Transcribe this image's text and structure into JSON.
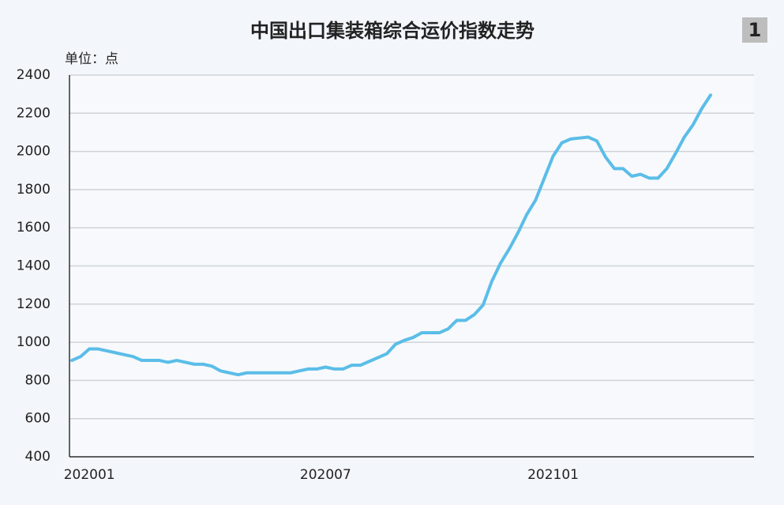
{
  "chart_data": {
    "type": "line",
    "title": "中国出口集装箱综合运价指数走势",
    "badge": "1",
    "unit_label": "单位：点",
    "categories": [
      null,
      null,
      "202001",
      null,
      null,
      null,
      null,
      null,
      null,
      null,
      null,
      null,
      null,
      null,
      null,
      null,
      null,
      null,
      null,
      null,
      null,
      null,
      null,
      null,
      null,
      null,
      null,
      null,
      null,
      "202007",
      null,
      null,
      null,
      null,
      null,
      null,
      null,
      null,
      null,
      null,
      null,
      null,
      null,
      null,
      null,
      null,
      null,
      null,
      null,
      null,
      null,
      null,
      null,
      null,
      null,
      "202101",
      null,
      null,
      null,
      null,
      null,
      null,
      null,
      null,
      null,
      null,
      null,
      null,
      null,
      null,
      null,
      null,
      null,
      null
    ],
    "series": [
      {
        "name": "中国出口集装箱综合运价指数",
        "color": "#5bbde8",
        "values": [
          905,
          925,
          965,
          965,
          955,
          945,
          935,
          925,
          905,
          905,
          905,
          895,
          905,
          895,
          885,
          885,
          875,
          850,
          840,
          830,
          840,
          840,
          840,
          840,
          840,
          840,
          850,
          860,
          860,
          870,
          860,
          860,
          880,
          880,
          900,
          920,
          940,
          990,
          1010,
          1025,
          1050,
          1050,
          1050,
          1070,
          1115,
          1115,
          1145,
          1195,
          1320,
          1415,
          1490,
          1575,
          1670,
          1745,
          1860,
          1975,
          2045,
          2065,
          2070,
          2075,
          2055,
          1970,
          1910,
          1910,
          1870,
          1880,
          1860,
          1860,
          1910,
          1990,
          2075,
          2140,
          2225,
          2295
        ]
      }
    ],
    "ylim": [
      400,
      2400
    ],
    "yticks": [
      400,
      600,
      800,
      1000,
      1200,
      1400,
      1600,
      1800,
      2000,
      2200,
      2400
    ],
    "grid": true
  }
}
